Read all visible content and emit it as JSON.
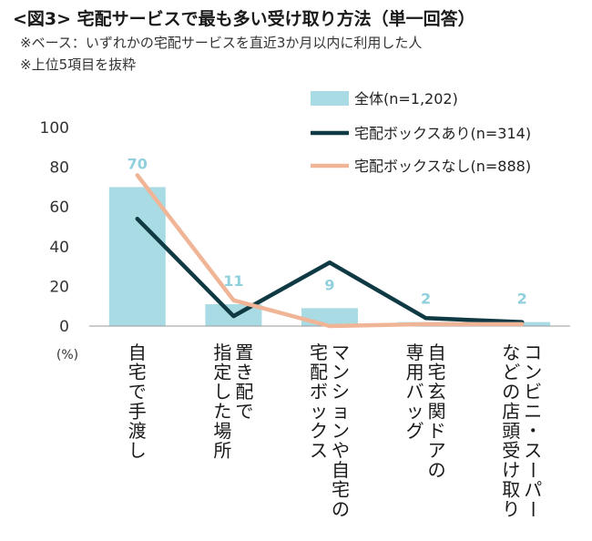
{
  "header": {
    "title": "<図3> 宅配サービスで最も多い受け取り方法（単一回答）",
    "note1": "※ベース：いずれかの宅配サービスを直近3か月以内に利用した人",
    "note2": "※上位5項目を抜粋"
  },
  "colors": {
    "bar": "#a9dbe5",
    "line_box": "#0f3a44",
    "line_nobox": "#f0b496",
    "label": "#8fd0dc",
    "axis": "#999999"
  },
  "chart_data": {
    "type": "bar",
    "categories": [
      "自宅で手渡し",
      "置き配で指定した場所",
      "マンションや自宅の宅配ボックス",
      "自宅玄関ドアの専用バッグ",
      "コンビニ・スーパーなどの店頭受け取り"
    ],
    "category_lines": [
      [
        "自宅で手渡し"
      ],
      [
        "置き配で",
        "指定した場所"
      ],
      [
        "マンションや自宅の",
        "宅配ボックス"
      ],
      [
        "自宅玄関ドアの",
        "専用バッグ"
      ],
      [
        "コンビニ・スーパー",
        "などの店頭受け取り"
      ]
    ],
    "series": [
      {
        "name": "全体(n=1,202)",
        "kind": "bar",
        "values": [
          70,
          11,
          9,
          2,
          2
        ],
        "labels": [
          "70",
          "11",
          "9",
          "2",
          "2"
        ]
      },
      {
        "name": "宅配ボックスあり(n=314)",
        "kind": "line",
        "values": [
          54,
          5,
          32,
          4,
          2
        ]
      },
      {
        "name": "宅配ボックスなし(n=888)",
        "kind": "line",
        "values": [
          76,
          13,
          0,
          1,
          1
        ]
      }
    ],
    "yticks": [
      "0",
      "20",
      "40",
      "60",
      "80",
      "100"
    ],
    "ylim": [
      0,
      100
    ],
    "unit": "(%)",
    "grid": false,
    "legend_position": "top-right"
  }
}
